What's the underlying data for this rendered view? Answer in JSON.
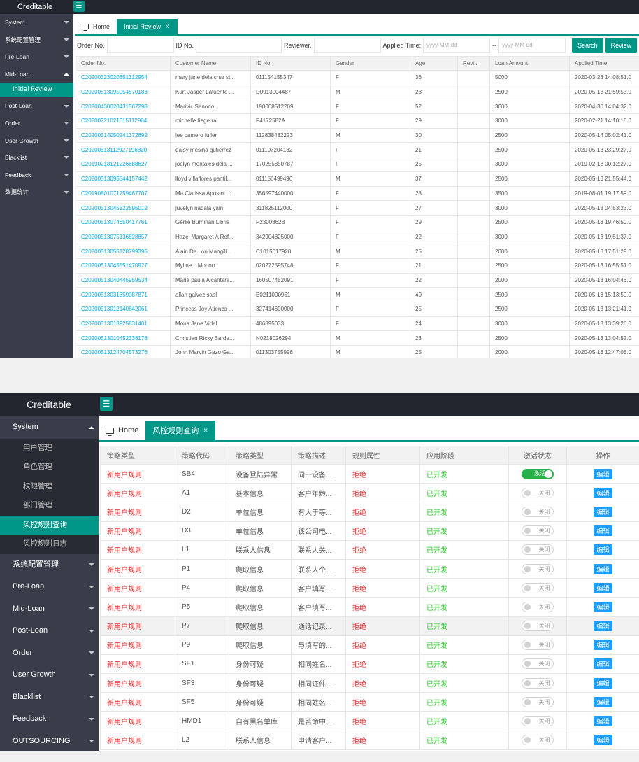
{
  "shot1": {
    "app_title": "Creditable",
    "sidebar": [
      {
        "label": "System"
      },
      {
        "label": "系统配置管理"
      },
      {
        "label": "Pre-Loan"
      },
      {
        "label": "Mid-Loan",
        "open": true,
        "sub": [
          {
            "label": "Initial Review",
            "active": true
          }
        ]
      },
      {
        "label": "Post-Loan"
      },
      {
        "label": "Order"
      },
      {
        "label": "User Growth"
      },
      {
        "label": "Blacklist"
      },
      {
        "label": "Feedback"
      },
      {
        "label": "数据统计"
      }
    ],
    "tabs": [
      {
        "label": "Home"
      },
      {
        "label": "Initial Review",
        "active": true
      }
    ],
    "filters": {
      "order_no_label": "Order No.",
      "id_no_label": "ID No.",
      "reviewer_label": "Reviewer.",
      "applied_time_label": "Applied Time:",
      "date_placeholder": "yyyy-MM-dd",
      "separator": "--",
      "search_btn": "Search",
      "review_btn": "Review"
    },
    "columns": [
      "Order No.",
      "Customer Name",
      "ID No.",
      "Gender",
      "Age",
      "Revi...",
      "Loan Amount",
      "Applied Time"
    ],
    "rows": [
      [
        "C2020032302085131295​4",
        "mary jane dela cruz st...",
        "011154155347",
        "F",
        "36",
        "",
        "5000",
        "2020-03-23 14:08:51.0"
      ],
      [
        "C20200513095954570183",
        "Kurt Jasper Lafuente ...",
        "D0913004487",
        "M",
        "23",
        "",
        "2500",
        "2020-05-13 21:59:55.0"
      ],
      [
        "C20200430020431567298",
        "Marivic Senorio",
        "190008512209",
        "F",
        "52",
        "",
        "3000",
        "2020-04-30 14:04:32.0"
      ],
      [
        "C20200221021015112984",
        "michelle fiegerra",
        "P4172582A",
        "F",
        "29",
        "",
        "3000",
        "2020-02-21 14:10:15.0"
      ],
      [
        "C20200514050241372692",
        "lee camero fuller",
        "112838482223",
        "M",
        "30",
        "",
        "2500",
        "2020-05-14 05:02:41.0"
      ],
      [
        "C20200513112927196820",
        "daisy mesina gutierrez",
        "011197204132",
        "F",
        "21",
        "",
        "2500",
        "2020-05-13 23:29:27.0"
      ],
      [
        "C20190218121226688627",
        "joelyn montales dela ...",
        "170255850787",
        "F",
        "25",
        "",
        "3000",
        "2019-02-18 00:12:27.0"
      ],
      [
        "C20200513095544157442",
        "lloyd villaflores pantil...",
        "011156499496",
        "M",
        "37",
        "",
        "2500",
        "2020-05-13 21:55:44.0"
      ],
      [
        "C20190801071759467707",
        "Ma Clarissa Apostol ...",
        "356597440000",
        "F",
        "23",
        "",
        "3500",
        "2019-08-01 19:17:59.0"
      ],
      [
        "C20200513045322595012",
        "juvelyn nadala yain",
        "311825112000",
        "F",
        "27",
        "",
        "3000",
        "2020-05-13 04:53:23.0"
      ],
      [
        "C20200513074650417761",
        "Gerlie Burnihan Libria",
        "P2300862B",
        "F",
        "29",
        "",
        "2500",
        "2020-05-13 19:46:50.0"
      ],
      [
        "C20200513075136828857",
        "Hazel Margaret A Ref...",
        "342904825000",
        "F",
        "22",
        "",
        "3000",
        "2020-05-13 19:51:37.0"
      ],
      [
        "C20200513055128799395",
        "Alain De Lon Mangili...",
        "C1015017920",
        "M",
        "25",
        "",
        "2000",
        "2020-05-13 17:51:29.0"
      ],
      [
        "C20200513045551470927",
        "Myline L Mopon",
        "020272595748",
        "F",
        "21",
        "",
        "2500",
        "2020-05-13 16:55:51.0"
      ],
      [
        "C20200513040445959534",
        "Maria paula Alcantara...",
        "160507452091",
        "F",
        "22",
        "",
        "2000",
        "2020-05-13 16:04:46.0"
      ],
      [
        "C20200513031359087871",
        "allan galvez sael",
        "E0211000951",
        "M",
        "40",
        "",
        "2500",
        "2020-05-13 15:13:59.0"
      ],
      [
        "C20200513012140842061",
        "Princess Joy Atienza ...",
        "327414690000",
        "F",
        "25",
        "",
        "2500",
        "2020-05-13 13:21:41.0"
      ],
      [
        "C20200513013925831401",
        "Mona Jane Vidal",
        "486895033",
        "F",
        "24",
        "",
        "3000",
        "2020-05-13 13:39:26.0"
      ],
      [
        "C20200513010452338178",
        "Christian Ricky Barde...",
        "N0218026294",
        "M",
        "23",
        "",
        "2500",
        "2020-05-13 13:04:52.0"
      ],
      [
        "C20200513124704573276",
        "John Marvin Gazo Ga...",
        "011303755996",
        "M",
        "25",
        "",
        "2000",
        "2020-05-13 12:47:05.0"
      ]
    ]
  },
  "shot2": {
    "app_title": "Creditable",
    "sidebar": [
      {
        "label": "System",
        "open": true,
        "sub": [
          {
            "label": "用户管理"
          },
          {
            "label": "角色管理"
          },
          {
            "label": "权限管理"
          },
          {
            "label": "部门管理"
          },
          {
            "label": "风控规则查询",
            "active": true
          },
          {
            "label": "风控规则日志"
          }
        ]
      },
      {
        "label": "系统配置管理"
      },
      {
        "label": "Pre-Loan"
      },
      {
        "label": "Mid-Loan"
      },
      {
        "label": "Post-Loan"
      },
      {
        "label": "Order"
      },
      {
        "label": "User Growth"
      },
      {
        "label": "Blacklist"
      },
      {
        "label": "Feedback"
      },
      {
        "label": "OUTSOURCING"
      }
    ],
    "tabs": [
      {
        "label": "Home"
      },
      {
        "label": "风控规则查询",
        "active": true
      }
    ],
    "columns": [
      "策略类型",
      "策略代码",
      "策略类型",
      "策略描述",
      "规则属性",
      "应用阶段",
      "激活状态",
      "操作"
    ],
    "switch_on_label": "激活",
    "switch_off_label": "关闭",
    "edit_label": "编辑",
    "colors": {
      "accent": "#009688",
      "red": "#e52c2c",
      "green": "#20c820",
      "switch_on": "#2ab04a",
      "edit": "#1e9fff"
    },
    "rows": [
      [
        "新用户规则",
        "SB4",
        "设备登陆异常",
        "同一设备...",
        "拒绝",
        "已开发",
        true
      ],
      [
        "新用户规则",
        "A1",
        "基本信息",
        "客户年龄...",
        "拒绝",
        "已开发",
        false
      ],
      [
        "新用户规则",
        "D2",
        "单位信息",
        "有大于等...",
        "拒绝",
        "已开发",
        false
      ],
      [
        "新用户规则",
        "D3",
        "单位信息",
        "该公司电...",
        "拒绝",
        "已开发",
        false
      ],
      [
        "新用户规则",
        "L1",
        "联系人信息",
        "联系人关...",
        "拒绝",
        "已开发",
        false
      ],
      [
        "新用户规则",
        "P1",
        "爬取信息",
        "联系人个...",
        "拒绝",
        "已开发",
        false
      ],
      [
        "新用户规则",
        "P4",
        "爬取信息",
        "客户填写...",
        "拒绝",
        "已开发",
        false
      ],
      [
        "新用户规则",
        "P5",
        "爬取信息",
        "客户填写...",
        "拒绝",
        "已开发",
        false
      ],
      [
        "新用户规则",
        "P7",
        "爬取信息",
        "通话记录...",
        "拒绝",
        "已开发",
        false
      ],
      [
        "新用户规则",
        "P9",
        "爬取信息",
        "与填写的...",
        "拒绝",
        "已开发",
        false
      ],
      [
        "新用户规则",
        "SF1",
        "身份可疑",
        "相同姓名...",
        "拒绝",
        "已开发",
        false
      ],
      [
        "新用户规则",
        "SF3",
        "身份可疑",
        "相同证件...",
        "拒绝",
        "已开发",
        false
      ],
      [
        "新用户规则",
        "SF5",
        "身份可疑",
        "相同姓名...",
        "拒绝",
        "已开发",
        false
      ],
      [
        "新用户规则",
        "HMD1",
        "自有黑名单库",
        "是否命中...",
        "拒绝",
        "已开发",
        false
      ],
      [
        "新用户规则",
        "L2",
        "联系人信息",
        "申请客户...",
        "拒绝",
        "已开发",
        false
      ]
    ]
  }
}
